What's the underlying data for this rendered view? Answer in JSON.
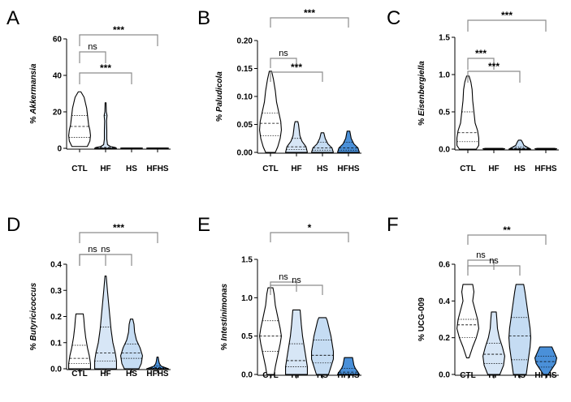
{
  "colors": {
    "ctl": "#ffffff",
    "hf": "#d7e6f6",
    "hs": "#c5dcf3",
    "hfhs": "#4a90d9",
    "bracket": "#8c8c8c",
    "stroke": "#000000"
  },
  "chart_data": [
    {
      "type": "violin",
      "panel": "A",
      "ylabel": "% Akkermansia",
      "ylim": [
        0,
        60
      ],
      "yticks": [
        0,
        20,
        40,
        60
      ],
      "categories": [
        "CTL",
        "HF",
        "HS",
        "HFHS"
      ],
      "series": [
        {
          "name": "CTL",
          "min": 1,
          "max": 31,
          "median": 12,
          "q1": 6,
          "q3": 18,
          "shape": [
            [
              1,
              6
            ],
            [
              4,
              8
            ],
            [
              7,
              8.5
            ],
            [
              10,
              8
            ],
            [
              13,
              7
            ],
            [
              16,
              6.5
            ],
            [
              19,
              6
            ],
            [
              22,
              5.5
            ],
            [
              25,
              4.5
            ],
            [
              28,
              3.5
            ],
            [
              31,
              1
            ]
          ]
        },
        {
          "name": "HF",
          "min": 0,
          "max": 25,
          "median": 0.5,
          "q1": 0.2,
          "q3": 18,
          "shape": [
            [
              0,
              4.5
            ],
            [
              0.5,
              4
            ],
            [
              1,
              2
            ],
            [
              2,
              0.8
            ],
            [
              5,
              0.5
            ],
            [
              10,
              0.5
            ],
            [
              15,
              0.4
            ],
            [
              18,
              0.6
            ],
            [
              20,
              0.3
            ],
            [
              25,
              0.2
            ]
          ]
        },
        {
          "name": "HS",
          "min": 0,
          "max": 0.2,
          "median": 0.1,
          "q1": 0.05,
          "q3": 0.15,
          "shape": [
            [
              0,
              8
            ],
            [
              0.1,
              9
            ],
            [
              0.2,
              8
            ]
          ]
        },
        {
          "name": "HFHS",
          "min": 0,
          "max": 0.2,
          "median": 0.1,
          "q1": 0.05,
          "q3": 0.15,
          "shape": [
            [
              0,
              8
            ],
            [
              0.1,
              9
            ],
            [
              0.2,
              8
            ]
          ]
        }
      ],
      "significance": [
        {
          "from": "CTL",
          "to": "HF",
          "label": "ns"
        },
        {
          "from": "CTL",
          "to": "HS",
          "label": "***"
        },
        {
          "from": "CTL",
          "to": "HFHS",
          "label": "***"
        }
      ]
    },
    {
      "type": "violin",
      "panel": "B",
      "ylabel": "% Paludicola",
      "ylim": [
        0,
        0.2
      ],
      "yticks": [
        "0.00",
        "0.05",
        "0.10",
        "0.15",
        "0.20"
      ],
      "categories": [
        "CTL",
        "HF",
        "HS",
        "HFHS"
      ],
      "series": [
        {
          "name": "CTL",
          "min": 0,
          "max": 0.145,
          "median": 0.052,
          "q1": 0.03,
          "q3": 0.07,
          "shape": [
            [
              0,
              4
            ],
            [
              0.01,
              6
            ],
            [
              0.025,
              8
            ],
            [
              0.04,
              9
            ],
            [
              0.055,
              8.5
            ],
            [
              0.07,
              7
            ],
            [
              0.09,
              5
            ],
            [
              0.11,
              4
            ],
            [
              0.13,
              2.5
            ],
            [
              0.145,
              1
            ]
          ]
        },
        {
          "name": "HF",
          "min": 0,
          "max": 0.055,
          "median": 0.01,
          "q1": 0.005,
          "q3": 0.025,
          "shape": [
            [
              0,
              8
            ],
            [
              0.01,
              7
            ],
            [
              0.02,
              4
            ],
            [
              0.03,
              2.5
            ],
            [
              0.04,
              2
            ],
            [
              0.05,
              1.5
            ],
            [
              0.055,
              1
            ]
          ]
        },
        {
          "name": "HS",
          "min": 0,
          "max": 0.035,
          "median": 0.008,
          "q1": 0.004,
          "q3": 0.018,
          "shape": [
            [
              0,
              8
            ],
            [
              0.008,
              7
            ],
            [
              0.015,
              4
            ],
            [
              0.025,
              2
            ],
            [
              0.035,
              1
            ]
          ]
        },
        {
          "name": "HFHS",
          "min": 0,
          "max": 0.038,
          "median": 0.008,
          "q1": 0.004,
          "q3": 0.018,
          "shape": [
            [
              0,
              8
            ],
            [
              0.008,
              7
            ],
            [
              0.015,
              4
            ],
            [
              0.025,
              2
            ],
            [
              0.038,
              1
            ]
          ]
        }
      ],
      "significance": [
        {
          "from": "CTL",
          "to": "HF",
          "label": "ns"
        },
        {
          "from": "CTL",
          "to": "HS",
          "label": "***"
        },
        {
          "from": "CTL",
          "to": "HFHS",
          "label": "***"
        }
      ]
    },
    {
      "type": "violin",
      "panel": "C",
      "ylabel": "% Eisenbergiella",
      "ylim": [
        0,
        1.5
      ],
      "yticks": [
        "0.0",
        "0.5",
        "1.0",
        "1.5"
      ],
      "categories": [
        "CTL",
        "HF",
        "HS",
        "HFHS"
      ],
      "series": [
        {
          "name": "CTL",
          "min": 0,
          "max": 0.98,
          "median": 0.22,
          "q1": 0.1,
          "q3": 0.5,
          "shape": [
            [
              0,
              7
            ],
            [
              0.05,
              9
            ],
            [
              0.15,
              9
            ],
            [
              0.25,
              8
            ],
            [
              0.35,
              6
            ],
            [
              0.5,
              5
            ],
            [
              0.65,
              4
            ],
            [
              0.8,
              3.5
            ],
            [
              0.9,
              2.5
            ],
            [
              0.98,
              1
            ]
          ]
        },
        {
          "name": "HF",
          "min": 0,
          "max": 0.01,
          "median": 0.003,
          "q1": 0.001,
          "q3": 0.006,
          "shape": [
            [
              0,
              8
            ],
            [
              0.005,
              9
            ],
            [
              0.01,
              7
            ]
          ]
        },
        {
          "name": "HS",
          "min": 0,
          "max": 0.12,
          "median": 0.01,
          "q1": 0.005,
          "q3": 0.03,
          "shape": [
            [
              0,
              8
            ],
            [
              0.02,
              6
            ],
            [
              0.05,
              3
            ],
            [
              0.09,
              2
            ],
            [
              0.12,
              1
            ]
          ]
        },
        {
          "name": "HFHS",
          "min": 0,
          "max": 0.01,
          "median": 0.003,
          "q1": 0.001,
          "q3": 0.006,
          "shape": [
            [
              0,
              8
            ],
            [
              0.005,
              9
            ],
            [
              0.01,
              7
            ]
          ]
        }
      ],
      "significance": [
        {
          "from": "CTL",
          "to": "HF",
          "label": "***"
        },
        {
          "from": "CTL",
          "to": "HS",
          "label": "***"
        },
        {
          "from": "CTL",
          "to": "HFHS",
          "label": "***"
        }
      ]
    },
    {
      "type": "violin",
      "panel": "D",
      "ylabel": "% Butyricicoccus",
      "ylim": [
        0,
        0.4
      ],
      "yticks": [
        "0.0",
        "0.1",
        "0.2",
        "0.3",
        "0.4"
      ],
      "categories": [
        "CTL",
        "HF",
        "HS",
        "HFHS"
      ],
      "series": [
        {
          "name": "CTL",
          "min": 0,
          "max": 0.21,
          "median": 0.04,
          "q1": 0.02,
          "q3": 0.09,
          "shape": [
            [
              0,
              9
            ],
            [
              0.02,
              9
            ],
            [
              0.05,
              8
            ],
            [
              0.08,
              6.5
            ],
            [
              0.12,
              5
            ],
            [
              0.16,
              4
            ],
            [
              0.19,
              3.5
            ],
            [
              0.21,
              3
            ]
          ]
        },
        {
          "name": "HF",
          "min": 0,
          "max": 0.355,
          "median": 0.06,
          "q1": 0.03,
          "q3": 0.16,
          "shape": [
            [
              0,
              9
            ],
            [
              0.03,
              9
            ],
            [
              0.06,
              8
            ],
            [
              0.1,
              6
            ],
            [
              0.15,
              4.5
            ],
            [
              0.2,
              3.5
            ],
            [
              0.25,
              2.5
            ],
            [
              0.3,
              1.5
            ],
            [
              0.355,
              0.5
            ]
          ]
        },
        {
          "name": "HS",
          "min": 0,
          "max": 0.19,
          "median": 0.06,
          "q1": 0.04,
          "q3": 0.095,
          "shape": [
            [
              0,
              6
            ],
            [
              0.02,
              8
            ],
            [
              0.05,
              9
            ],
            [
              0.08,
              7
            ],
            [
              0.11,
              4
            ],
            [
              0.14,
              2.5
            ],
            [
              0.17,
              2
            ],
            [
              0.19,
              1
            ]
          ]
        },
        {
          "name": "HFHS",
          "min": 0,
          "max": 0.045,
          "median": 0.005,
          "q1": 0.002,
          "q3": 0.01,
          "shape": [
            [
              0,
              9
            ],
            [
              0.005,
              6
            ],
            [
              0.01,
              3
            ],
            [
              0.02,
              1.5
            ],
            [
              0.03,
              1
            ],
            [
              0.045,
              0.5
            ]
          ]
        }
      ],
      "significance": [
        {
          "from": "CTL",
          "to": "HF",
          "label": "ns"
        },
        {
          "from": "CTL",
          "to": "HS",
          "label": "ns"
        },
        {
          "from": "CTL",
          "to": "HFHS",
          "label": "***"
        }
      ]
    },
    {
      "type": "violin",
      "panel": "E",
      "ylabel": "% Intestinimonas",
      "ylim": [
        0,
        1.5
      ],
      "yticks": [
        "0.0",
        "0.5",
        "1.0",
        "1.5"
      ],
      "categories": [
        "CTL",
        "HF",
        "HS",
        "HFHS"
      ],
      "series": [
        {
          "name": "CTL",
          "min": 0,
          "max": 1.13,
          "median": 0.5,
          "q1": 0.3,
          "q3": 0.7,
          "shape": [
            [
              0,
              3
            ],
            [
              0.1,
              4
            ],
            [
              0.25,
              6
            ],
            [
              0.4,
              8
            ],
            [
              0.5,
              9
            ],
            [
              0.6,
              8
            ],
            [
              0.75,
              6
            ],
            [
              0.9,
              4
            ],
            [
              1.05,
              3
            ],
            [
              1.13,
              2
            ]
          ]
        },
        {
          "name": "HF",
          "min": 0,
          "max": 0.84,
          "median": 0.18,
          "q1": 0.1,
          "q3": 0.4,
          "shape": [
            [
              0,
              9
            ],
            [
              0.1,
              9
            ],
            [
              0.2,
              8
            ],
            [
              0.35,
              6.5
            ],
            [
              0.5,
              5
            ],
            [
              0.65,
              4
            ],
            [
              0.75,
              3.5
            ],
            [
              0.84,
              3
            ]
          ]
        },
        {
          "name": "HS",
          "min": 0,
          "max": 0.74,
          "median": 0.25,
          "q1": 0.15,
          "q3": 0.45,
          "shape": [
            [
              0,
              5
            ],
            [
              0.1,
              7
            ],
            [
              0.2,
              9
            ],
            [
              0.3,
              9
            ],
            [
              0.4,
              8
            ],
            [
              0.5,
              7
            ],
            [
              0.6,
              5.5
            ],
            [
              0.7,
              4
            ],
            [
              0.74,
              3
            ]
          ]
        },
        {
          "name": "HFHS",
          "min": 0,
          "max": 0.22,
          "median": 0.03,
          "q1": 0.01,
          "q3": 0.08,
          "shape": [
            [
              0,
              8
            ],
            [
              0.03,
              7
            ],
            [
              0.08,
              5
            ],
            [
              0.12,
              4
            ],
            [
              0.17,
              3.5
            ],
            [
              0.22,
              3
            ]
          ]
        }
      ],
      "significance": [
        {
          "from": "CTL",
          "to": "HF",
          "label": "ns"
        },
        {
          "from": "CTL",
          "to": "HS",
          "label": "ns"
        },
        {
          "from": "CTL",
          "to": "HFHS",
          "label": "*"
        }
      ]
    },
    {
      "type": "violin",
      "panel": "F",
      "ylabel": "% UCG-009",
      "ylim": [
        0,
        0.6
      ],
      "yticks": [
        "0.0",
        "0.2",
        "0.4",
        "0.6"
      ],
      "categories": [
        "CTL",
        "HF",
        "HS",
        "HFHS"
      ],
      "series": [
        {
          "name": "CTL",
          "min": 0.09,
          "max": 0.49,
          "median": 0.27,
          "q1": 0.2,
          "q3": 0.3,
          "shape": [
            [
              0.09,
              1
            ],
            [
              0.15,
              4
            ],
            [
              0.2,
              7
            ],
            [
              0.25,
              9
            ],
            [
              0.3,
              8
            ],
            [
              0.35,
              6
            ],
            [
              0.4,
              4
            ],
            [
              0.45,
              5
            ],
            [
              0.49,
              4
            ]
          ]
        },
        {
          "name": "HF",
          "min": 0,
          "max": 0.34,
          "median": 0.11,
          "q1": 0.06,
          "q3": 0.17,
          "shape": [
            [
              0,
              5
            ],
            [
              0.05,
              8
            ],
            [
              0.1,
              9
            ],
            [
              0.15,
              7
            ],
            [
              0.2,
              4.5
            ],
            [
              0.25,
              3
            ],
            [
              0.3,
              2.5
            ],
            [
              0.34,
              2
            ]
          ]
        },
        {
          "name": "HS",
          "min": 0,
          "max": 0.49,
          "median": 0.21,
          "q1": 0.08,
          "q3": 0.31,
          "shape": [
            [
              0,
              5
            ],
            [
              0.05,
              6
            ],
            [
              0.1,
              7
            ],
            [
              0.15,
              8
            ],
            [
              0.2,
              8.5
            ],
            [
              0.25,
              8
            ],
            [
              0.3,
              7
            ],
            [
              0.35,
              6
            ],
            [
              0.4,
              5
            ],
            [
              0.45,
              4
            ],
            [
              0.49,
              3
            ]
          ]
        },
        {
          "name": "HFHS",
          "min": 0,
          "max": 0.15,
          "median": 0.07,
          "q1": 0.04,
          "q3": 0.1,
          "shape": [
            [
              0,
              2
            ],
            [
              0.03,
              5
            ],
            [
              0.06,
              8
            ],
            [
              0.09,
              9
            ],
            [
              0.12,
              7
            ],
            [
              0.15,
              5
            ]
          ]
        }
      ],
      "significance": [
        {
          "from": "CTL",
          "to": "HF",
          "label": "ns"
        },
        {
          "from": "CTL",
          "to": "HS",
          "label": "ns"
        },
        {
          "from": "CTL",
          "to": "HFHS",
          "label": "**"
        }
      ]
    }
  ]
}
